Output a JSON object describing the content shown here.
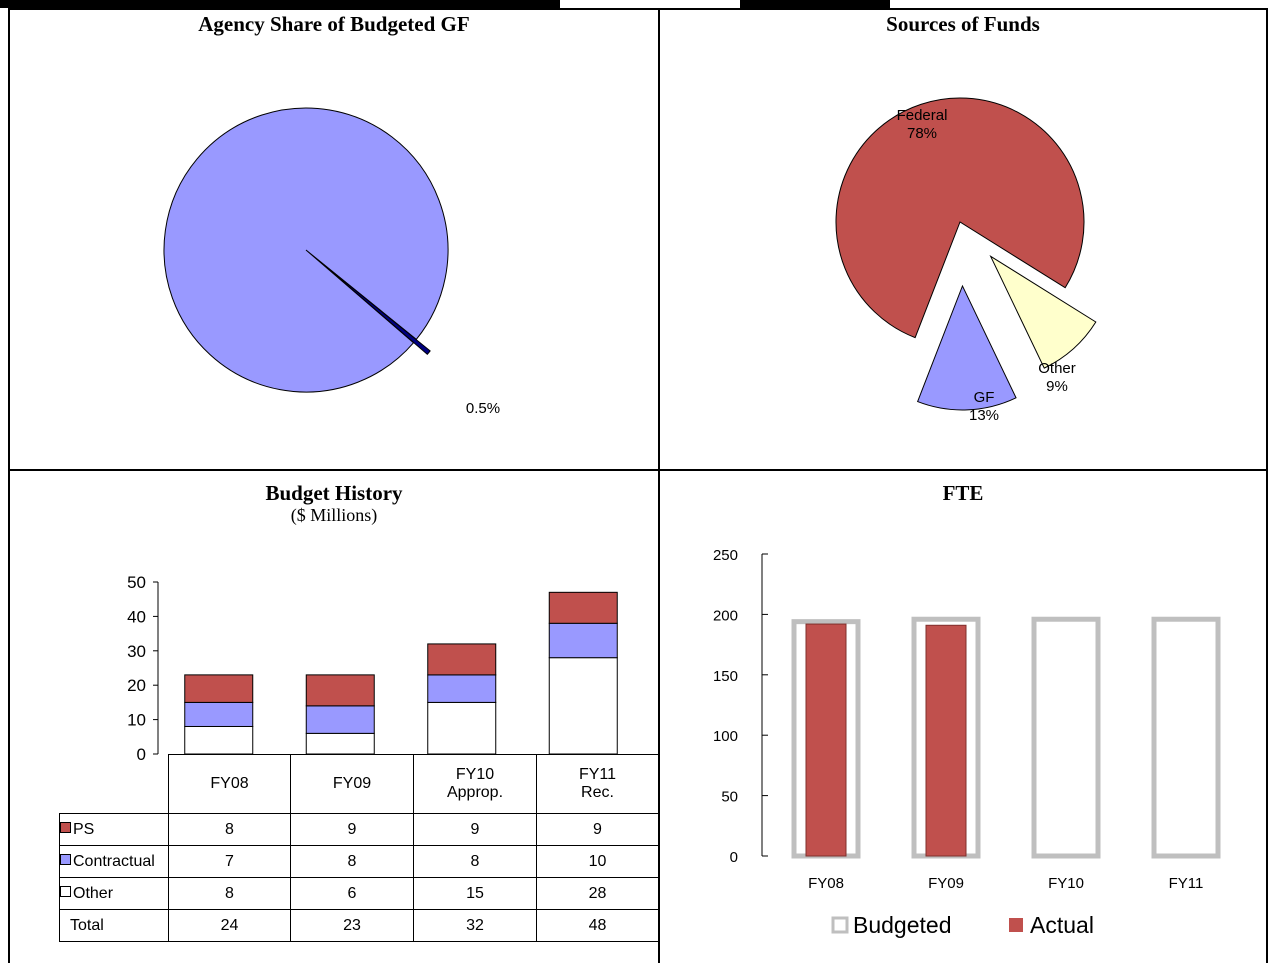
{
  "panels": {
    "agency_share_title": "Agency Share of Budgeted GF",
    "sources_title": "Sources of Funds",
    "budget_title": "Budget History",
    "budget_subtitle": "($ Millions)",
    "fte_title": "FTE"
  },
  "colors": {
    "gf_blue": "#9999ff",
    "federal_red": "#c0504d",
    "other_yellow": "#ffffcc",
    "agency_navy": "#000080",
    "budgeted_gray": "#bfbfbf"
  },
  "chart_data": [
    {
      "type": "pie",
      "title": "Agency Share of Budgeted GF",
      "slices": [
        {
          "label": "",
          "value": 99.5
        },
        {
          "label": "0.5%",
          "value": 0.5
        }
      ],
      "data_labels": [
        "0.5%"
      ]
    },
    {
      "type": "pie",
      "title": "Sources of Funds",
      "slices": [
        {
          "label": "Federal",
          "value": 78,
          "display": "78%"
        },
        {
          "label": "GF",
          "value": 13,
          "display": "13%"
        },
        {
          "label": "Other",
          "value": 9,
          "display": "9%"
        }
      ]
    },
    {
      "type": "bar",
      "title": "Budget History",
      "subtitle": "($ Millions)",
      "categories": [
        "FY08",
        "FY09",
        "FY10 Approp.",
        "FY11 Rec."
      ],
      "category_lines": [
        [
          "FY08"
        ],
        [
          "FY09"
        ],
        [
          "FY10",
          "Approp."
        ],
        [
          "FY11",
          "Rec."
        ]
      ],
      "series": [
        {
          "name": "PS",
          "values": [
            8,
            9,
            9,
            9
          ]
        },
        {
          "name": "Contractual",
          "values": [
            7,
            8,
            8,
            10
          ]
        },
        {
          "name": "Other",
          "values": [
            8,
            6,
            15,
            28
          ]
        }
      ],
      "totals_label": "Total",
      "totals": [
        24,
        23,
        32,
        48
      ],
      "ylim": [
        0,
        50
      ],
      "yticks": [
        "0",
        "10",
        "20",
        "30",
        "40",
        "50"
      ],
      "stacked": true
    },
    {
      "type": "bar",
      "title": "FTE",
      "categories": [
        "FY08",
        "FY09",
        "FY10",
        "FY11"
      ],
      "series": [
        {
          "name": "Budgeted",
          "values": [
            194,
            196,
            196,
            196
          ]
        },
        {
          "name": "Actual",
          "values": [
            192,
            191,
            null,
            null
          ]
        }
      ],
      "ylim": [
        0,
        250
      ],
      "yticks": [
        "0",
        "50",
        "100",
        "150",
        "200",
        "250"
      ],
      "legend": "bottom"
    }
  ]
}
